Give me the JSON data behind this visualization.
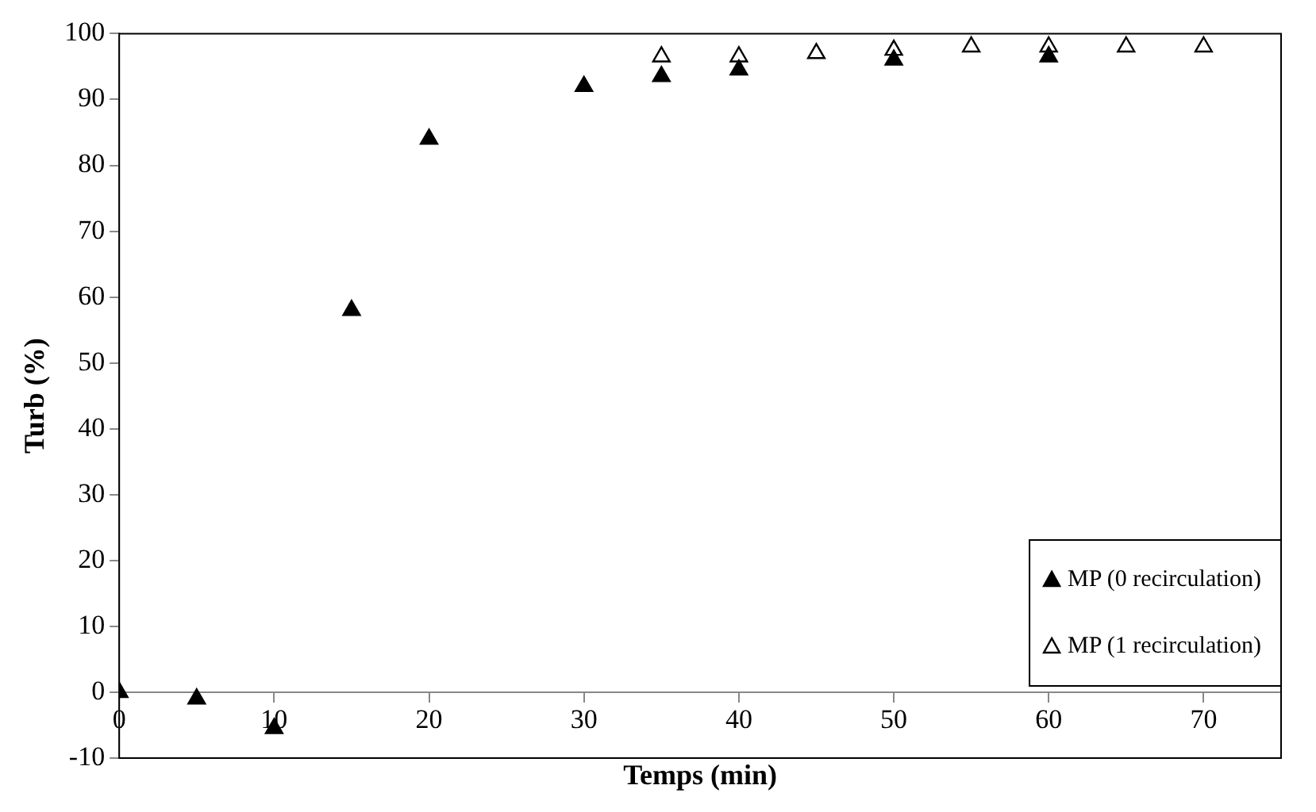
{
  "chart_data": {
    "type": "scatter",
    "xlabel": "Temps (min)",
    "ylabel": "Turb (%)",
    "xlim": [
      0,
      75
    ],
    "xticks": [
      0,
      10,
      20,
      30,
      40,
      50,
      60,
      70
    ],
    "ylim": [
      -10,
      100
    ],
    "yticks": [
      -10,
      0,
      10,
      20,
      30,
      40,
      50,
      60,
      70,
      80,
      90,
      100
    ],
    "grid": false,
    "legend": "bottom right",
    "marker": "triangle",
    "series": [
      {
        "name": "MP (0 recirculation)",
        "color": "#000000",
        "x": [
          0,
          5,
          10,
          15,
          20,
          30,
          35,
          40,
          50,
          60
        ],
        "values": [
          0,
          -1,
          -5.5,
          58,
          84,
          92,
          93.5,
          94.5,
          96,
          96.5
        ]
      },
      {
        "name": "MP (1 recirculation)",
        "color": "#ffffff",
        "x": [
          35,
          40,
          45,
          50,
          55,
          60,
          65,
          70
        ],
        "values": [
          96.5,
          96.5,
          97,
          97.5,
          98,
          98,
          98,
          98
        ]
      }
    ]
  }
}
